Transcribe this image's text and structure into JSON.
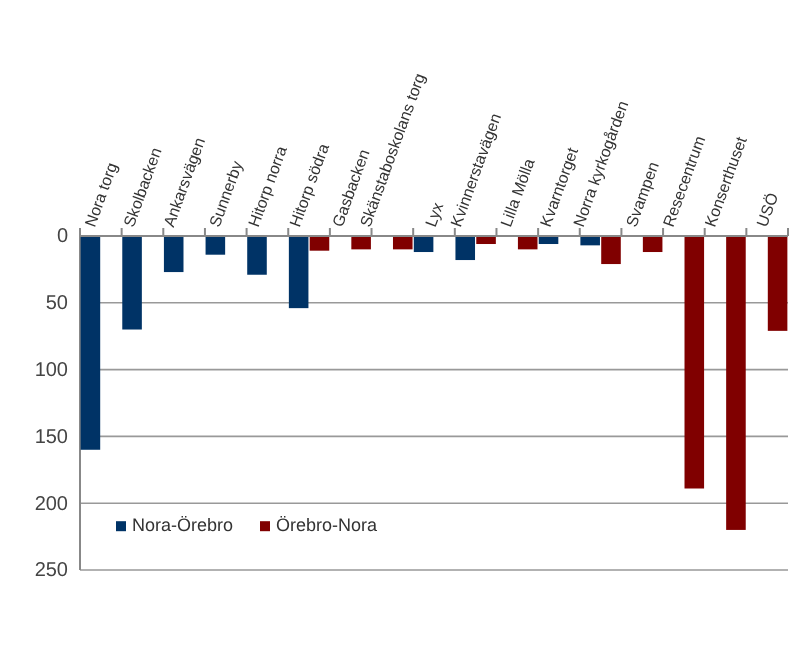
{
  "chart_data": {
    "type": "bar",
    "categories": [
      "Nora torg",
      "Skolbacken",
      "Ankarsvägen",
      "Sunnerby",
      "Hitorp norra",
      "Hitorp södra",
      "Gasbacken",
      "Skänstaboskolans torg",
      "Lyx",
      "Kvinnerstavägen",
      "Lilla Mölla",
      "Kvarntorget",
      "Norra kyrkogården",
      "Svampen",
      "Resecentrum",
      "Konserthuset",
      "USÖ"
    ],
    "series": [
      {
        "name": "Nora-Örebro",
        "color": "#003366",
        "values": [
          160,
          70,
          27,
          14,
          29,
          54,
          null,
          null,
          12,
          18,
          null,
          6,
          7,
          null,
          null,
          null,
          null
        ]
      },
      {
        "name": "Örebro-Nora",
        "color": "#800000",
        "values": [
          null,
          null,
          null,
          null,
          null,
          11,
          10,
          10,
          null,
          6,
          10,
          null,
          21,
          12,
          189,
          220,
          71
        ]
      }
    ],
    "ylim": [
      250,
      0
    ],
    "yticks": [
      0,
      50,
      100,
      150,
      200,
      250
    ],
    "grid": "y",
    "legend": "bottom left"
  }
}
